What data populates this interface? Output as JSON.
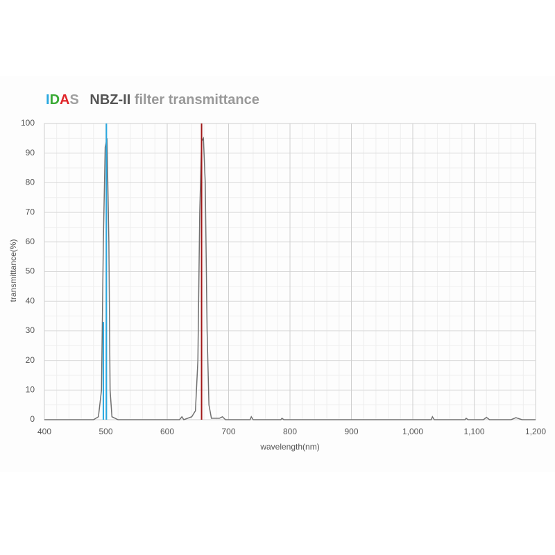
{
  "chart_data": {
    "type": "line",
    "title": {
      "brand": [
        "I",
        "D",
        "A",
        "S"
      ],
      "brand_colors": [
        "#29a8e0",
        "#3aaa35",
        "#e0262a",
        "#a0a0a0"
      ],
      "model": "NBZ-II",
      "text": "filter transmittance"
    },
    "x_label": "wavelength(nm)",
    "y_label": "transmittance(%)",
    "xlim": [
      400,
      1200
    ],
    "ylim": [
      0,
      100
    ],
    "xticks": [
      400,
      500,
      600,
      700,
      800,
      900,
      {
        "value": 1000,
        "label": "1,000"
      },
      {
        "value": 1100,
        "label": "1,100"
      },
      {
        "value": 1200,
        "label": "1,200"
      }
    ],
    "yticks": [
      0,
      10,
      20,
      30,
      40,
      50,
      60,
      70,
      80,
      90,
      100
    ],
    "xminorticks": [
      420,
      440,
      460,
      480,
      520,
      540,
      560,
      580,
      620,
      640,
      660,
      680,
      720,
      740,
      760,
      780,
      820,
      840,
      860,
      880,
      920,
      940,
      960,
      980,
      1020,
      1040,
      1060,
      1080,
      1120,
      1140,
      1160,
      1180
    ],
    "yminorticks": [
      5,
      15,
      25,
      35,
      45,
      55,
      65,
      75,
      85,
      95
    ],
    "grid": true,
    "series": [
      {
        "color": "#707070",
        "x": [
          400,
          480,
          488,
          493,
          496,
          499,
          502,
          505,
          507,
          510,
          520,
          620,
          624,
          627,
          640,
          646,
          650,
          653,
          656,
          659,
          662,
          665,
          668,
          672,
          685,
          690,
          695,
          735,
          737,
          740,
          785,
          787,
          790,
          1030,
          1032,
          1035,
          1085,
          1087,
          1090,
          1115,
          1120,
          1125,
          1160,
          1168,
          1178,
          1200
        ],
        "values": [
          0,
          0,
          1,
          10,
          60,
          92,
          95,
          60,
          10,
          1,
          0,
          0,
          1,
          0,
          1,
          3,
          20,
          70,
          94,
          95,
          80,
          30,
          5,
          0.5,
          0.5,
          1,
          0,
          0,
          1,
          0,
          0,
          0.5,
          0,
          0,
          1,
          0,
          0,
          0.5,
          0,
          0,
          0.8,
          0,
          0,
          0.7,
          0,
          0
        ]
      }
    ],
    "emission_lines": [
      {
        "x": 496,
        "value": 33,
        "color": "#29a8e0"
      },
      {
        "x": 501,
        "value": 100,
        "color": "#29a8e0"
      },
      {
        "x": 656,
        "value": 100,
        "color": "#a01818"
      }
    ]
  }
}
